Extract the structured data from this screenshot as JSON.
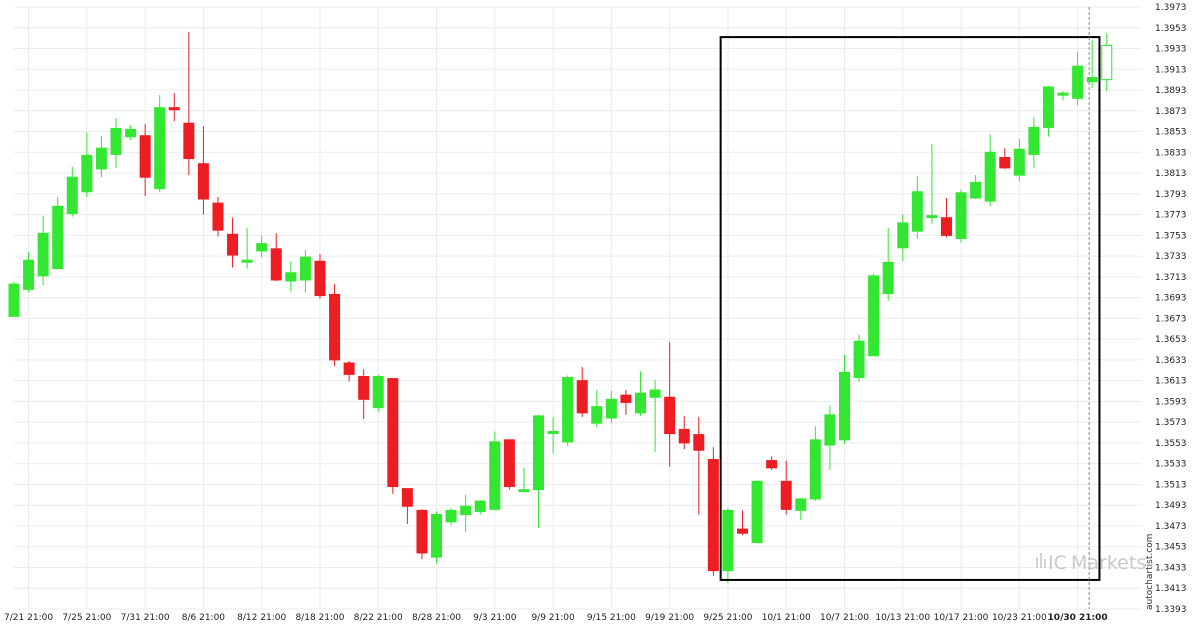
{
  "chart_data": {
    "type": "candlestick",
    "title": "",
    "xlabel": "",
    "ylabel": "",
    "ylim": [
      1.3393,
      1.3973
    ],
    "grid": true,
    "y_ticks": [
      "1.3973",
      "1.3953",
      "1.3933",
      "1.3913",
      "1.3893",
      "1.3873",
      "1.3853",
      "1.3833",
      "1.3813",
      "1.3793",
      "1.3773",
      "1.3753",
      "1.3733",
      "1.3713",
      "1.3693",
      "1.3673",
      "1.3653",
      "1.3633",
      "1.3613",
      "1.3593",
      "1.3573",
      "1.3553",
      "1.3533",
      "1.3513",
      "1.3493",
      "1.3473",
      "1.3453",
      "1.3433",
      "1.3413",
      "1.3393"
    ],
    "x_ticks": [
      {
        "label": "7/21 21:00",
        "index": 1
      },
      {
        "label": "7/25 21:00",
        "index": 5
      },
      {
        "label": "7/31 21:00",
        "index": 9
      },
      {
        "label": "8/6 21:00",
        "index": 13
      },
      {
        "label": "8/12 21:00",
        "index": 17
      },
      {
        "label": "8/18 21:00",
        "index": 21
      },
      {
        "label": "8/22 21:00",
        "index": 25
      },
      {
        "label": "8/28 21:00",
        "index": 29
      },
      {
        "label": "9/3 21:00",
        "index": 33
      },
      {
        "label": "9/9 21:00",
        "index": 37
      },
      {
        "label": "9/15 21:00",
        "index": 41
      },
      {
        "label": "9/19 21:00",
        "index": 45
      },
      {
        "label": "9/25 21:00",
        "index": 49
      },
      {
        "label": "10/1 21:00",
        "index": 53
      },
      {
        "label": "10/7 21:00",
        "index": 57
      },
      {
        "label": "10/13 21:00",
        "index": 61
      },
      {
        "label": "10/17 21:00",
        "index": 65
      },
      {
        "label": "10/23 21:00",
        "index": 69
      },
      {
        "label": "10/30 21:00",
        "index": 73,
        "bold": true
      }
    ],
    "candles": [
      {
        "o": 1.3675,
        "h": 1.3708,
        "l": 1.3675,
        "c": 1.3706
      },
      {
        "o": 1.3701,
        "h": 1.3737,
        "l": 1.3698,
        "c": 1.3729
      },
      {
        "o": 1.3714,
        "h": 1.3772,
        "l": 1.3705,
        "c": 1.3755
      },
      {
        "o": 1.3721,
        "h": 1.379,
        "l": 1.372,
        "c": 1.3781
      },
      {
        "o": 1.3774,
        "h": 1.3819,
        "l": 1.3771,
        "c": 1.3809
      },
      {
        "o": 1.3795,
        "h": 1.3852,
        "l": 1.379,
        "c": 1.383
      },
      {
        "o": 1.3817,
        "h": 1.3849,
        "l": 1.3809,
        "c": 1.3837
      },
      {
        "o": 1.3831,
        "h": 1.3866,
        "l": 1.3818,
        "c": 1.3856
      },
      {
        "o": 1.3848,
        "h": 1.3859,
        "l": 1.3845,
        "c": 1.3855
      },
      {
        "o": 1.3849,
        "h": 1.386,
        "l": 1.3791,
        "c": 1.3809
      },
      {
        "o": 1.3798,
        "h": 1.3888,
        "l": 1.3795,
        "c": 1.3876
      },
      {
        "o": 1.3876,
        "h": 1.389,
        "l": 1.3863,
        "c": 1.3875
      },
      {
        "o": 1.3861,
        "h": 1.3949,
        "l": 1.3811,
        "c": 1.3827
      },
      {
        "o": 1.3822,
        "h": 1.3858,
        "l": 1.3773,
        "c": 1.3788
      },
      {
        "o": 1.3784,
        "h": 1.379,
        "l": 1.3752,
        "c": 1.3758
      },
      {
        "o": 1.3754,
        "h": 1.377,
        "l": 1.3722,
        "c": 1.3734
      },
      {
        "o": 1.3729,
        "h": 1.376,
        "l": 1.3721,
        "c": 1.3729
      },
      {
        "o": 1.3738,
        "h": 1.3753,
        "l": 1.3732,
        "c": 1.3745
      },
      {
        "o": 1.374,
        "h": 1.3755,
        "l": 1.3709,
        "c": 1.371
      },
      {
        "o": 1.3709,
        "h": 1.3728,
        "l": 1.3699,
        "c": 1.3717
      },
      {
        "o": 1.371,
        "h": 1.3739,
        "l": 1.3698,
        "c": 1.3732
      },
      {
        "o": 1.3728,
        "h": 1.3735,
        "l": 1.3692,
        "c": 1.3695
      },
      {
        "o": 1.3696,
        "h": 1.3706,
        "l": 1.3627,
        "c": 1.3633
      },
      {
        "o": 1.363,
        "h": 1.3632,
        "l": 1.3612,
        "c": 1.3619
      },
      {
        "o": 1.3617,
        "h": 1.3624,
        "l": 1.3576,
        "c": 1.3595
      },
      {
        "o": 1.3587,
        "h": 1.3619,
        "l": 1.3583,
        "c": 1.3617
      },
      {
        "o": 1.3615,
        "h": 1.3615,
        "l": 1.3504,
        "c": 1.3511
      },
      {
        "o": 1.3509,
        "h": 1.3509,
        "l": 1.3475,
        "c": 1.3492
      },
      {
        "o": 1.3488,
        "h": 1.3489,
        "l": 1.3441,
        "c": 1.3447
      },
      {
        "o": 1.3443,
        "h": 1.3487,
        "l": 1.3437,
        "c": 1.3484
      },
      {
        "o": 1.3477,
        "h": 1.349,
        "l": 1.3474,
        "c": 1.3488
      },
      {
        "o": 1.3484,
        "h": 1.3503,
        "l": 1.3467,
        "c": 1.3492
      },
      {
        "o": 1.3487,
        "h": 1.3498,
        "l": 1.3484,
        "c": 1.3497
      },
      {
        "o": 1.3489,
        "h": 1.3564,
        "l": 1.3488,
        "c": 1.3554
      },
      {
        "o": 1.3556,
        "h": 1.3556,
        "l": 1.3508,
        "c": 1.3511
      },
      {
        "o": 1.3508,
        "h": 1.3529,
        "l": 1.3507,
        "c": 1.3508
      },
      {
        "o": 1.3508,
        "h": 1.358,
        "l": 1.3471,
        "c": 1.3579
      },
      {
        "o": 1.3563,
        "h": 1.3578,
        "l": 1.3543,
        "c": 1.3564
      },
      {
        "o": 1.3554,
        "h": 1.3618,
        "l": 1.355,
        "c": 1.3616
      },
      {
        "o": 1.3613,
        "h": 1.3626,
        "l": 1.3578,
        "c": 1.3582
      },
      {
        "o": 1.3572,
        "h": 1.3604,
        "l": 1.3568,
        "c": 1.3588
      },
      {
        "o": 1.3577,
        "h": 1.3603,
        "l": 1.3572,
        "c": 1.3595
      },
      {
        "o": 1.3599,
        "h": 1.3604,
        "l": 1.358,
        "c": 1.3592
      },
      {
        "o": 1.3582,
        "h": 1.3622,
        "l": 1.3579,
        "c": 1.3601
      },
      {
        "o": 1.3597,
        "h": 1.3614,
        "l": 1.3544,
        "c": 1.3604
      },
      {
        "o": 1.3597,
        "h": 1.365,
        "l": 1.353,
        "c": 1.3562
      },
      {
        "o": 1.3566,
        "h": 1.3579,
        "l": 1.3547,
        "c": 1.3553
      },
      {
        "o": 1.3561,
        "h": 1.3578,
        "l": 1.3484,
        "c": 1.3546
      },
      {
        "o": 1.3537,
        "h": 1.3549,
        "l": 1.3425,
        "c": 1.343
      },
      {
        "o": 1.343,
        "h": 1.349,
        "l": 1.3418,
        "c": 1.3488
      },
      {
        "o": 1.347,
        "h": 1.3488,
        "l": 1.3464,
        "c": 1.3466
      },
      {
        "o": 1.3457,
        "h": 1.3517,
        "l": 1.3457,
        "c": 1.3516
      },
      {
        "o": 1.3536,
        "h": 1.354,
        "l": 1.3527,
        "c": 1.3529
      },
      {
        "o": 1.3516,
        "h": 1.3536,
        "l": 1.3484,
        "c": 1.3489
      },
      {
        "o": 1.3488,
        "h": 1.35,
        "l": 1.3479,
        "c": 1.3499
      },
      {
        "o": 1.3499,
        "h": 1.3569,
        "l": 1.3497,
        "c": 1.3556
      },
      {
        "o": 1.3551,
        "h": 1.3589,
        "l": 1.3527,
        "c": 1.358
      },
      {
        "o": 1.3556,
        "h": 1.3638,
        "l": 1.3552,
        "c": 1.3621
      },
      {
        "o": 1.3616,
        "h": 1.3657,
        "l": 1.3612,
        "c": 1.3651
      },
      {
        "o": 1.3637,
        "h": 1.3716,
        "l": 1.3637,
        "c": 1.3714
      },
      {
        "o": 1.3697,
        "h": 1.376,
        "l": 1.369,
        "c": 1.3727
      },
      {
        "o": 1.3741,
        "h": 1.3773,
        "l": 1.3728,
        "c": 1.3765
      },
      {
        "o": 1.3757,
        "h": 1.381,
        "l": 1.375,
        "c": 1.3795
      },
      {
        "o": 1.3771,
        "h": 1.3841,
        "l": 1.3764,
        "c": 1.3772
      },
      {
        "o": 1.377,
        "h": 1.3789,
        "l": 1.3751,
        "c": 1.3753
      },
      {
        "o": 1.375,
        "h": 1.3797,
        "l": 1.3746,
        "c": 1.3794
      },
      {
        "o": 1.3789,
        "h": 1.3811,
        "l": 1.3788,
        "c": 1.3804
      },
      {
        "o": 1.3786,
        "h": 1.385,
        "l": 1.3781,
        "c": 1.3833
      },
      {
        "o": 1.3828,
        "h": 1.3837,
        "l": 1.3817,
        "c": 1.3818
      },
      {
        "o": 1.3811,
        "h": 1.3846,
        "l": 1.3805,
        "c": 1.3836
      },
      {
        "o": 1.3831,
        "h": 1.3867,
        "l": 1.3818,
        "c": 1.3857
      },
      {
        "o": 1.3857,
        "h": 1.3897,
        "l": 1.3848,
        "c": 1.3896
      },
      {
        "o": 1.389,
        "h": 1.3892,
        "l": 1.3883,
        "c": 1.389
      },
      {
        "o": 1.3885,
        "h": 1.393,
        "l": 1.3878,
        "c": 1.3916
      },
      {
        "o": 1.3901,
        "h": 1.3941,
        "l": 1.3895,
        "c": 1.3905
      },
      {
        "o": 1.3903,
        "h": 1.3948,
        "l": 1.3892,
        "c": 1.3936
      }
    ],
    "highlight_box": {
      "from_index": 48.5,
      "to_index": 74.5,
      "low": 1.3421,
      "high": 1.3944
    },
    "current_time_index": 74,
    "colors": {
      "up": "#32e632",
      "down": "#ee1d23",
      "grid": "#ececec",
      "box": "#000000",
      "axis_text": "#222222"
    }
  },
  "watermark": {
    "vertical_text": "autochartist.com",
    "brand_prefix": "IC",
    "brand_suffix": "Markets"
  }
}
